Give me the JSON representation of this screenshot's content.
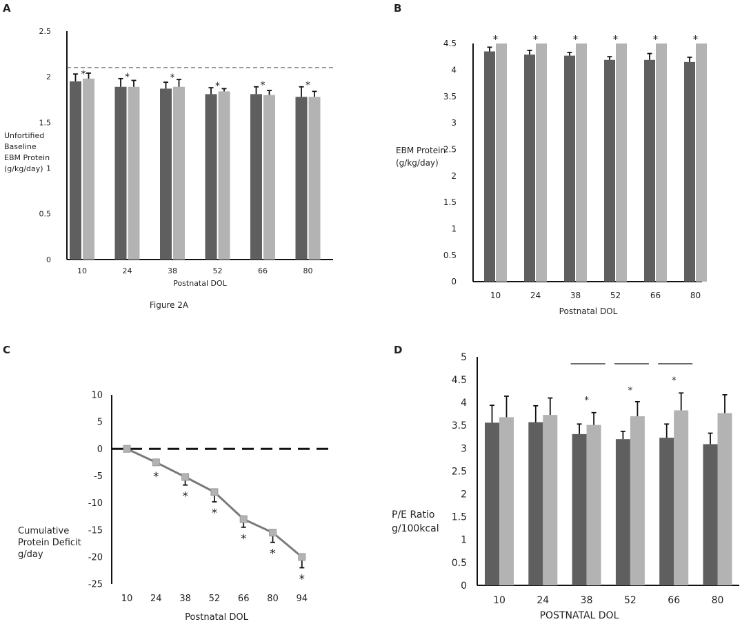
{
  "colors": {
    "dark": "#5f5f5f",
    "light": "#b3b3b3",
    "line": "#7a7a7a",
    "axis": "#111111"
  },
  "chart_data": [
    {
      "panel": "A",
      "type": "bar",
      "ylabel_lines": [
        "Unfortified",
        "Baseline",
        "EBM Protein",
        "(g/kg/day)"
      ],
      "xlabel": "Postnatal DOL",
      "caption": "Figure 2A",
      "categories": [
        "10",
        "24",
        "38",
        "52",
        "66",
        "80"
      ],
      "yticks": [
        0,
        0.5,
        1,
        1.5,
        2,
        2.5
      ],
      "ytick_labels": [
        "0",
        "0.5",
        "1",
        "1.5",
        "2",
        "2.5"
      ],
      "ylim": [
        0,
        2.5
      ],
      "reference_line": 2.1,
      "series": [
        {
          "name": "series 1",
          "values": [
            1.95,
            1.89,
            1.87,
            1.81,
            1.81,
            1.78
          ],
          "errors": [
            0.08,
            0.09,
            0.07,
            0.07,
            0.08,
            0.11
          ]
        },
        {
          "name": "series 2",
          "values": [
            1.98,
            1.89,
            1.89,
            1.84,
            1.8,
            1.78
          ],
          "errors": [
            0.06,
            0.07,
            0.08,
            0.03,
            0.05,
            0.06
          ]
        }
      ],
      "annotations": [
        "*",
        "*",
        "*",
        "*",
        "*",
        "*"
      ]
    },
    {
      "panel": "B",
      "type": "bar",
      "ylabel_lines": [
        "EBM Protein",
        "(g/kg/day)"
      ],
      "xlabel": "Postnatal DOL",
      "categories": [
        "10",
        "24",
        "38",
        "52",
        "66",
        "80"
      ],
      "yticks": [
        0,
        0.5,
        1,
        1.5,
        2,
        2.5,
        3,
        3.5,
        4,
        4.5
      ],
      "ytick_labels": [
        "0",
        "0.5",
        "1",
        "1.5",
        "2",
        "2.5",
        "3",
        "3.5",
        "4",
        "4.5"
      ],
      "ylim": [
        0,
        4.5
      ],
      "series": [
        {
          "name": "series 1",
          "values": [
            4.35,
            4.29,
            4.27,
            4.19,
            4.19,
            4.15
          ],
          "errors": [
            0.08,
            0.08,
            0.06,
            0.06,
            0.12,
            0.09
          ]
        },
        {
          "name": "series 2",
          "values": [
            4.5,
            4.5,
            4.5,
            4.5,
            4.5,
            4.5
          ],
          "errors": [
            0,
            0,
            0,
            0,
            0,
            0
          ]
        }
      ],
      "annotations": [
        "*",
        "*",
        "*",
        "*",
        "*",
        "*"
      ]
    },
    {
      "panel": "C",
      "type": "line",
      "ylabel_lines": [
        "Cumulative",
        "Protein Deficit",
        " g/day"
      ],
      "xlabel": "Postnatal DOL",
      "categories": [
        "10",
        "24",
        "38",
        "52",
        "66",
        "80",
        "94"
      ],
      "yticks": [
        -25,
        -20,
        -15,
        -10,
        -5,
        0,
        5,
        10
      ],
      "ytick_labels": [
        "-25",
        "-20",
        "-15",
        "-10",
        "-5",
        "0",
        "5",
        "10"
      ],
      "ylim": [
        -25,
        10
      ],
      "reference_line": 0,
      "series": [
        {
          "name": "deficit",
          "values": [
            0,
            -2.5,
            -5.2,
            -8,
            -13,
            -15.5,
            -20
          ],
          "errors": [
            0,
            0.5,
            1.5,
            1.8,
            1.5,
            1.8,
            2.0
          ]
        }
      ],
      "annotations": [
        "",
        "*",
        "*",
        "*",
        "*",
        "*",
        "*"
      ]
    },
    {
      "panel": "D",
      "type": "bar",
      "ylabel_lines": [
        "P/E Ratio",
        "g/100kcal"
      ],
      "xlabel": "POSTNATAL DOL",
      "categories": [
        "10",
        "24",
        "38",
        "52",
        "66",
        "80"
      ],
      "yticks": [
        0,
        0.5,
        1,
        1.5,
        2,
        2.5,
        3,
        3.5,
        4,
        4.5,
        5
      ],
      "ytick_labels": [
        "0",
        "0.5",
        "1",
        "1.5",
        "2",
        "2.5",
        "3",
        "3.5",
        "4",
        "4.5",
        "5"
      ],
      "ylim": [
        0,
        5
      ],
      "series": [
        {
          "name": "series 1",
          "values": [
            3.56,
            3.57,
            3.31,
            3.2,
            3.23,
            3.09
          ],
          "errors": [
            0.38,
            0.36,
            0.22,
            0.17,
            0.3,
            0.24
          ]
        },
        {
          "name": "series 2",
          "values": [
            3.68,
            3.73,
            3.51,
            3.7,
            3.83,
            3.77
          ],
          "errors": [
            0.46,
            0.37,
            0.27,
            0.32,
            0.38,
            0.4
          ]
        }
      ],
      "annotations": [
        "",
        "",
        "*",
        "*",
        "*",
        ""
      ],
      "significance_bars": [
        false,
        false,
        true,
        true,
        true,
        false
      ]
    }
  ]
}
